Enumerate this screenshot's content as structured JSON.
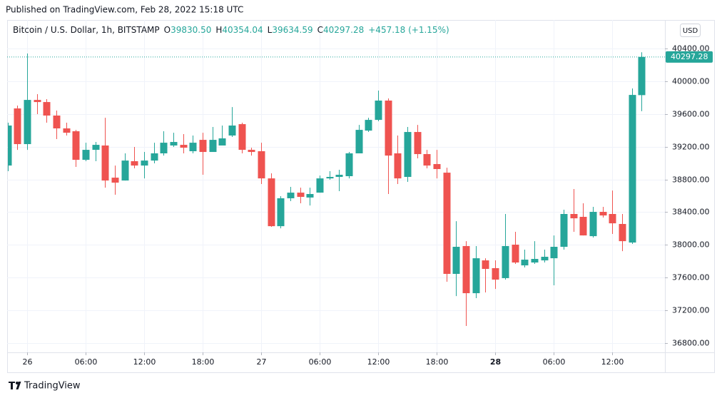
{
  "published": "Published on TradingView.com, Feb 28, 2022 15:18 UTC",
  "footer_brand": "TradingView",
  "chart_data": {
    "type": "candlestick",
    "symbol": "Bitcoin / U.S. Dollar, 1h, BITSTAMP",
    "ohlc_header": {
      "o": "O",
      "open": "39830.50",
      "h": "H",
      "high": "40354.04",
      "l": "L",
      "low": "39634.59",
      "c": "C",
      "close": "40297.28",
      "change": "+457.18 (+1.15%)"
    },
    "currency": "USD",
    "last_price_label": "40297.28",
    "up_color": "#26a69a",
    "down_color": "#ef5350",
    "categories": [
      null,
      null,
      "26",
      null,
      null,
      null,
      null,
      null,
      "06:00",
      null,
      null,
      null,
      null,
      null,
      "12:00",
      null,
      null,
      null,
      null,
      null,
      "18:00",
      null,
      null,
      null,
      null,
      null,
      "27",
      null,
      null,
      null,
      null,
      null,
      "06:00",
      null,
      null,
      null,
      null,
      null,
      "12:00",
      null,
      null,
      null,
      null,
      null,
      "18:00",
      null,
      null,
      null,
      null,
      null,
      "28",
      null,
      null,
      null,
      null,
      null,
      "06:00",
      null,
      null,
      null,
      null,
      null,
      "12:00",
      null,
      null,
      null
    ],
    "open": [
      38970,
      39668,
      39232,
      39772,
      39746,
      39581,
      39424,
      39389,
      39040,
      39162,
      39215,
      38822,
      38787,
      39023,
      38970,
      39031,
      39119,
      39215,
      39223,
      39145,
      39284,
      39136,
      39215,
      39337,
      39476,
      39162,
      39145,
      38813,
      38229,
      38570,
      38639,
      38579,
      38639,
      38813,
      38831,
      38840,
      39119,
      39397,
      39528,
      39764,
      39119,
      38831,
      39380,
      39110,
      38988,
      38883,
      37646,
      37986,
      37410,
      37811,
      37716,
      37594,
      38003,
      37750,
      37785,
      37811,
      37837,
      37977,
      38378,
      38343,
      38107,
      38404,
      38378,
      38256,
      38029,
      39830.5
    ],
    "high": [
      39494,
      39703,
      40339,
      39842,
      39781,
      39642,
      39494,
      39406,
      39249,
      39258,
      39554,
      38970,
      39119,
      39197,
      39136,
      39249,
      39389,
      39371,
      39354,
      39337,
      39371,
      39441,
      39459,
      39685,
      39494,
      39188,
      39249,
      38875,
      38596,
      38709,
      38700,
      38700,
      38848,
      38901,
      38918,
      39136,
      39467,
      39554,
      39886,
      39790,
      39337,
      39441,
      39467,
      39162,
      39162,
      38944,
      38290,
      38046,
      37986,
      37837,
      37811,
      38378,
      38160,
      37942,
      38046,
      37942,
      38116,
      38430,
      38683,
      38509,
      38465,
      38465,
      38665,
      38378,
      39912,
      40354.04
    ],
    "low": [
      38901,
      39162,
      39162,
      39598,
      39494,
      39293,
      39337,
      38953,
      39023,
      39023,
      38700,
      38613,
      38787,
      38936,
      38813,
      38997,
      39092,
      39197,
      39119,
      39119,
      38857,
      39136,
      39249,
      39319,
      39119,
      39092,
      38744,
      38221,
      38203,
      38535,
      38509,
      38482,
      38639,
      38796,
      38657,
      38813,
      39119,
      39380,
      39511,
      38622,
      38744,
      38770,
      39058,
      38936,
      38813,
      37550,
      37375,
      37009,
      37349,
      37419,
      37462,
      37576,
      37768,
      37724,
      37768,
      37785,
      37506,
      37942,
      38160,
      38116,
      38090,
      38334,
      38134,
      37924,
      38012,
      39634.59
    ],
    "close": [
      39459,
      39232,
      39772,
      39746,
      39581,
      39424,
      39371,
      39040,
      39162,
      39223,
      38787,
      38761,
      39031,
      38970,
      39031,
      39119,
      39249,
      39258,
      39188,
      39249,
      39136,
      39284,
      39302,
      39459,
      39162,
      39136,
      38813,
      38229,
      38570,
      38639,
      38587,
      38622,
      38813,
      38831,
      38857,
      39119,
      39406,
      39528,
      39764,
      39092,
      38813,
      39380,
      39110,
      38970,
      38927,
      37646,
      37977,
      37410,
      37837,
      37707,
      37576,
      37986,
      37785,
      37820,
      37829,
      37855,
      37977,
      38378,
      38325,
      38116,
      38404,
      38360,
      38264,
      38046,
      39833,
      40297.28
    ],
    "ylim": [
      36687,
      40749
    ],
    "yticks": [
      {
        "value": 36800,
        "label": "36800.00"
      },
      {
        "value": 37200,
        "label": "37200.00"
      },
      {
        "value": 37600,
        "label": "37600.00"
      },
      {
        "value": 38000,
        "label": "38000.00"
      },
      {
        "value": 38400,
        "label": "38400.00"
      },
      {
        "value": 38800,
        "label": "38800.00"
      },
      {
        "value": 39200,
        "label": "39200.00"
      },
      {
        "value": 39600,
        "label": "39600.00"
      },
      {
        "value": 40000,
        "label": "40000.00"
      },
      {
        "value": 40400,
        "label": "40400.00"
      }
    ],
    "grid": true
  }
}
